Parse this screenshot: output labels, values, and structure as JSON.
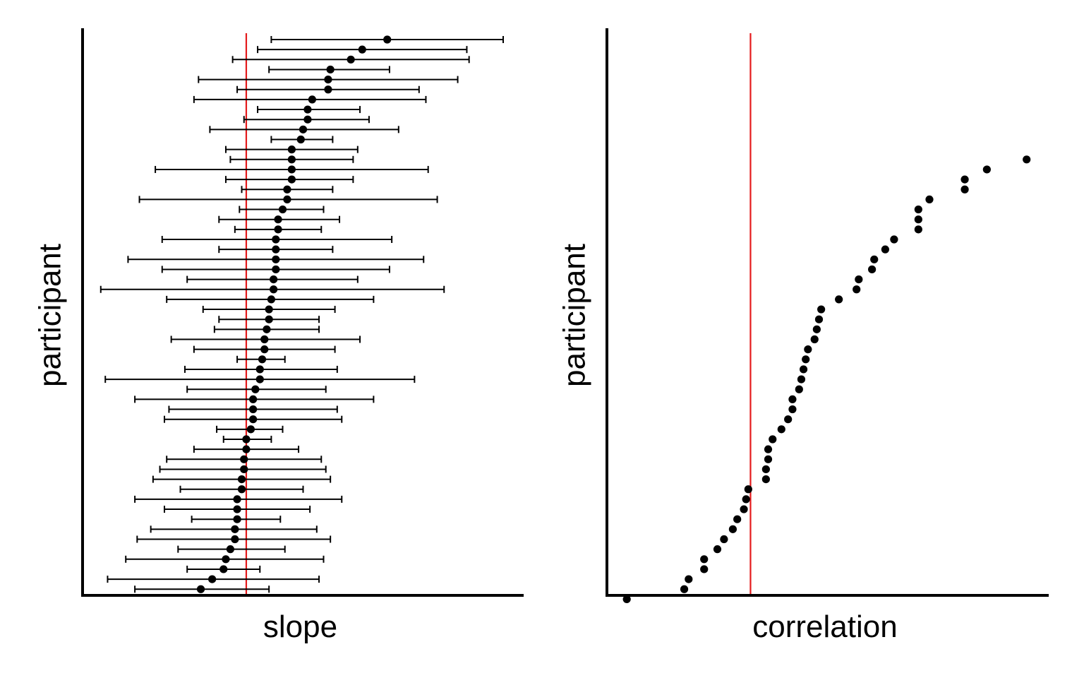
{
  "chart_data": [
    {
      "type": "scatter",
      "subtype": "dot-with-error-bars",
      "xlabel": "slope",
      "ylabel": "participant",
      "x_ticks_shown": false,
      "y_ticks_shown": false,
      "grid": false,
      "reference_line": {
        "x": 0,
        "color": "#e41a1c"
      },
      "xlim": [
        -0.72,
        1.22
      ],
      "ylim": [
        0,
        57
      ],
      "points": [
        {
          "y": 56,
          "x": 0.62,
          "lo": 0.11,
          "hi": 1.13
        },
        {
          "y": 55,
          "x": 0.51,
          "lo": 0.05,
          "hi": 0.97
        },
        {
          "y": 54,
          "x": 0.46,
          "lo": -0.06,
          "hi": 0.98
        },
        {
          "y": 53,
          "x": 0.37,
          "lo": 0.1,
          "hi": 0.63
        },
        {
          "y": 52,
          "x": 0.36,
          "lo": -0.21,
          "hi": 0.93
        },
        {
          "y": 51,
          "x": 0.36,
          "lo": -0.04,
          "hi": 0.76
        },
        {
          "y": 50,
          "x": 0.29,
          "lo": -0.23,
          "hi": 0.79
        },
        {
          "y": 49,
          "x": 0.27,
          "lo": 0.05,
          "hi": 0.5
        },
        {
          "y": 48,
          "x": 0.27,
          "lo": -0.01,
          "hi": 0.54
        },
        {
          "y": 47,
          "x": 0.25,
          "lo": -0.16,
          "hi": 0.67
        },
        {
          "y": 46,
          "x": 0.24,
          "lo": 0.11,
          "hi": 0.38
        },
        {
          "y": 45,
          "x": 0.2,
          "lo": -0.09,
          "hi": 0.49
        },
        {
          "y": 44,
          "x": 0.2,
          "lo": -0.07,
          "hi": 0.47
        },
        {
          "y": 43,
          "x": 0.2,
          "lo": -0.4,
          "hi": 0.8
        },
        {
          "y": 42,
          "x": 0.2,
          "lo": -0.09,
          "hi": 0.47
        },
        {
          "y": 41,
          "x": 0.18,
          "lo": -0.02,
          "hi": 0.38
        },
        {
          "y": 40,
          "x": 0.18,
          "lo": -0.47,
          "hi": 0.84
        },
        {
          "y": 39,
          "x": 0.16,
          "lo": -0.03,
          "hi": 0.34
        },
        {
          "y": 38,
          "x": 0.14,
          "lo": -0.12,
          "hi": 0.41
        },
        {
          "y": 37,
          "x": 0.14,
          "lo": -0.05,
          "hi": 0.33
        },
        {
          "y": 36,
          "x": 0.13,
          "lo": -0.37,
          "hi": 0.64
        },
        {
          "y": 35,
          "x": 0.13,
          "lo": -0.12,
          "hi": 0.38
        },
        {
          "y": 34,
          "x": 0.13,
          "lo": -0.52,
          "hi": 0.78
        },
        {
          "y": 33,
          "x": 0.13,
          "lo": -0.37,
          "hi": 0.63
        },
        {
          "y": 32,
          "x": 0.12,
          "lo": -0.26,
          "hi": 0.49
        },
        {
          "y": 31,
          "x": 0.12,
          "lo": -0.64,
          "hi": 0.87
        },
        {
          "y": 30,
          "x": 0.11,
          "lo": -0.35,
          "hi": 0.56
        },
        {
          "y": 29,
          "x": 0.1,
          "lo": -0.19,
          "hi": 0.39
        },
        {
          "y": 28,
          "x": 0.1,
          "lo": -0.12,
          "hi": 0.32
        },
        {
          "y": 27,
          "x": 0.09,
          "lo": -0.14,
          "hi": 0.32
        },
        {
          "y": 26,
          "x": 0.08,
          "lo": -0.33,
          "hi": 0.5
        },
        {
          "y": 25,
          "x": 0.08,
          "lo": -0.23,
          "hi": 0.39
        },
        {
          "y": 24,
          "x": 0.07,
          "lo": -0.04,
          "hi": 0.17
        },
        {
          "y": 23,
          "x": 0.06,
          "lo": -0.27,
          "hi": 0.4
        },
        {
          "y": 22,
          "x": 0.06,
          "lo": -0.62,
          "hi": 0.74
        },
        {
          "y": 21,
          "x": 0.04,
          "lo": -0.26,
          "hi": 0.35
        },
        {
          "y": 20,
          "x": 0.03,
          "lo": -0.49,
          "hi": 0.56
        },
        {
          "y": 19,
          "x": 0.03,
          "lo": -0.34,
          "hi": 0.4
        },
        {
          "y": 18,
          "x": 0.03,
          "lo": -0.36,
          "hi": 0.42
        },
        {
          "y": 17,
          "x": 0.02,
          "lo": -0.13,
          "hi": 0.16
        },
        {
          "y": 16,
          "x": 0.0,
          "lo": -0.1,
          "hi": 0.11
        },
        {
          "y": 15,
          "x": 0.0,
          "lo": -0.23,
          "hi": 0.23
        },
        {
          "y": 14,
          "x": -0.01,
          "lo": -0.35,
          "hi": 0.33
        },
        {
          "y": 13,
          "x": -0.01,
          "lo": -0.38,
          "hi": 0.35
        },
        {
          "y": 12,
          "x": -0.02,
          "lo": -0.41,
          "hi": 0.37
        },
        {
          "y": 11,
          "x": -0.02,
          "lo": -0.29,
          "hi": 0.25
        },
        {
          "y": 10,
          "x": -0.04,
          "lo": -0.49,
          "hi": 0.42
        },
        {
          "y": 9,
          "x": -0.04,
          "lo": -0.36,
          "hi": 0.28
        },
        {
          "y": 8,
          "x": -0.04,
          "lo": -0.24,
          "hi": 0.15
        },
        {
          "y": 7,
          "x": -0.05,
          "lo": -0.42,
          "hi": 0.31
        },
        {
          "y": 6,
          "x": -0.05,
          "lo": -0.48,
          "hi": 0.37
        },
        {
          "y": 5,
          "x": -0.07,
          "lo": -0.3,
          "hi": 0.17
        },
        {
          "y": 4,
          "x": -0.09,
          "lo": -0.53,
          "hi": 0.34
        },
        {
          "y": 3,
          "x": -0.1,
          "lo": -0.26,
          "hi": 0.06
        },
        {
          "y": 2,
          "x": -0.15,
          "lo": -0.61,
          "hi": 0.32
        },
        {
          "y": 1,
          "x": -0.2,
          "lo": -0.49,
          "hi": 0.1
        }
      ]
    },
    {
      "type": "scatter",
      "xlabel": "correlation",
      "ylabel": "participant",
      "x_ticks_shown": false,
      "y_ticks_shown": false,
      "grid": false,
      "reference_line": {
        "x": 0,
        "color": "#e41a1c"
      },
      "xlim": [
        -0.65,
        1.35
      ],
      "ylim": [
        0,
        57
      ],
      "points": [
        {
          "y": 44,
          "x": 1.25
        },
        {
          "y": 43,
          "x": 1.07
        },
        {
          "y": 42,
          "x": 0.97
        },
        {
          "y": 41,
          "x": 0.97
        },
        {
          "y": 40,
          "x": 0.81
        },
        {
          "y": 39,
          "x": 0.76
        },
        {
          "y": 38,
          "x": 0.76
        },
        {
          "y": 37,
          "x": 0.76
        },
        {
          "y": 36,
          "x": 0.65
        },
        {
          "y": 35,
          "x": 0.61
        },
        {
          "y": 34,
          "x": 0.56
        },
        {
          "y": 33,
          "x": 0.55
        },
        {
          "y": 32,
          "x": 0.49
        },
        {
          "y": 31,
          "x": 0.48
        },
        {
          "y": 30,
          "x": 0.4
        },
        {
          "y": 29,
          "x": 0.32
        },
        {
          "y": 28,
          "x": 0.31
        },
        {
          "y": 27,
          "x": 0.3
        },
        {
          "y": 26,
          "x": 0.29
        },
        {
          "y": 25,
          "x": 0.26
        },
        {
          "y": 24,
          "x": 0.25
        },
        {
          "y": 23,
          "x": 0.24
        },
        {
          "y": 22,
          "x": 0.23
        },
        {
          "y": 21,
          "x": 0.22
        },
        {
          "y": 20,
          "x": 0.19
        },
        {
          "y": 19,
          "x": 0.19
        },
        {
          "y": 18,
          "x": 0.17
        },
        {
          "y": 17,
          "x": 0.14
        },
        {
          "y": 16,
          "x": 0.1
        },
        {
          "y": 15,
          "x": 0.08
        },
        {
          "y": 14,
          "x": 0.08
        },
        {
          "y": 13,
          "x": 0.07
        },
        {
          "y": 12,
          "x": 0.07
        },
        {
          "y": 11,
          "x": -0.01
        },
        {
          "y": 10,
          "x": -0.02
        },
        {
          "y": 9,
          "x": -0.03
        },
        {
          "y": 8,
          "x": -0.06
        },
        {
          "y": 7,
          "x": -0.08
        },
        {
          "y": 6,
          "x": -0.12
        },
        {
          "y": 5,
          "x": -0.15
        },
        {
          "y": 4,
          "x": -0.21
        },
        {
          "y": 3,
          "x": -0.21
        },
        {
          "y": 2,
          "x": -0.28
        },
        {
          "y": 1,
          "x": -0.3
        },
        {
          "y": 0,
          "x": -0.56
        }
      ]
    }
  ],
  "colors": {
    "points": "#000000",
    "axes": "#000000",
    "reference_line": "#e41a1c"
  }
}
